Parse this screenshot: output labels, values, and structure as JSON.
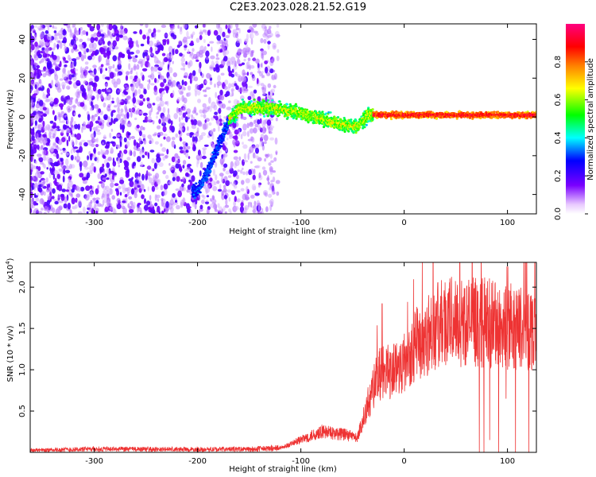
{
  "page_title": "C2E3.2023.028.21.52.G19",
  "chart_data": [
    {
      "type": "heatmap",
      "xlabel": "Height of straight line (km)",
      "ylabel": "Frequency (Hz)",
      "xlim": [
        -362,
        128
      ],
      "ylim": [
        -50,
        48
      ],
      "x_ticks": [
        -300,
        -200,
        -100,
        0,
        100
      ],
      "x_tick_labels": [
        "-300",
        "-200",
        "-100",
        "0",
        "100"
      ],
      "y_ticks": [
        -40,
        -20,
        0,
        20,
        40
      ],
      "y_tick_labels": [
        "-40",
        "-20",
        "0",
        "20",
        "40"
      ],
      "colorbar": {
        "label": "Normalized spectral amplitude",
        "range": [
          0,
          1
        ],
        "ticks": [
          0,
          0.2,
          0.4,
          0.6,
          0.8
        ],
        "tick_labels": [
          "0.0",
          "0.2",
          "0.4",
          "0.6",
          "0.8"
        ],
        "colormap": [
          "#ffffff",
          "#7a00ff",
          "#0000ff",
          "#00ffff",
          "#00ff00",
          "#ffff00",
          "#ff8000",
          "#ff0000",
          "#ff0080"
        ]
      },
      "signal_track": [
        {
          "x": -200,
          "y": -38
        },
        {
          "x": -190,
          "y": -28
        },
        {
          "x": -180,
          "y": -15
        },
        {
          "x": -170,
          "y": -2
        },
        {
          "x": -160,
          "y": 4
        },
        {
          "x": -140,
          "y": 5
        },
        {
          "x": -120,
          "y": 4
        },
        {
          "x": -100,
          "y": 2
        },
        {
          "x": -80,
          "y": -1
        },
        {
          "x": -60,
          "y": -4
        },
        {
          "x": -45,
          "y": -5
        },
        {
          "x": -35,
          "y": 1
        },
        {
          "x": 0,
          "y": 1
        },
        {
          "x": 50,
          "y": 1
        },
        {
          "x": 128,
          "y": 1
        }
      ]
    },
    {
      "type": "line",
      "xlabel": "Height of straight line (km)",
      "ylabel": "SNR (10 * v/v)",
      "y_multiplier_label": "(x10",
      "y_multiplier_exp": "4",
      "xlim": [
        -362,
        128
      ],
      "ylim": [
        0,
        23000
      ],
      "x_ticks": [
        -300,
        -200,
        -100,
        0,
        100
      ],
      "x_tick_labels": [
        "-300",
        "-200",
        "-100",
        "0",
        "100"
      ],
      "y_ticks": [
        5000,
        10000,
        15000,
        20000
      ],
      "y_tick_labels": [
        "0.5",
        "1.0",
        "1.5",
        "2.0"
      ],
      "series_color": "#ee3333",
      "envelope": [
        {
          "x": -362,
          "y": 250
        },
        {
          "x": -300,
          "y": 400
        },
        {
          "x": -200,
          "y": 350
        },
        {
          "x": -150,
          "y": 380
        },
        {
          "x": -120,
          "y": 500
        },
        {
          "x": -100,
          "y": 1500
        },
        {
          "x": -80,
          "y": 2500
        },
        {
          "x": -60,
          "y": 2200
        },
        {
          "x": -45,
          "y": 1800
        },
        {
          "x": -35,
          "y": 6000
        },
        {
          "x": -25,
          "y": 9500
        },
        {
          "x": -10,
          "y": 10000
        },
        {
          "x": 0,
          "y": 11000
        },
        {
          "x": 10,
          "y": 13000
        },
        {
          "x": 25,
          "y": 14500
        },
        {
          "x": 40,
          "y": 16000
        },
        {
          "x": 60,
          "y": 15800
        },
        {
          "x": 80,
          "y": 15700
        },
        {
          "x": 100,
          "y": 15200
        },
        {
          "x": 128,
          "y": 15000
        }
      ]
    }
  ]
}
